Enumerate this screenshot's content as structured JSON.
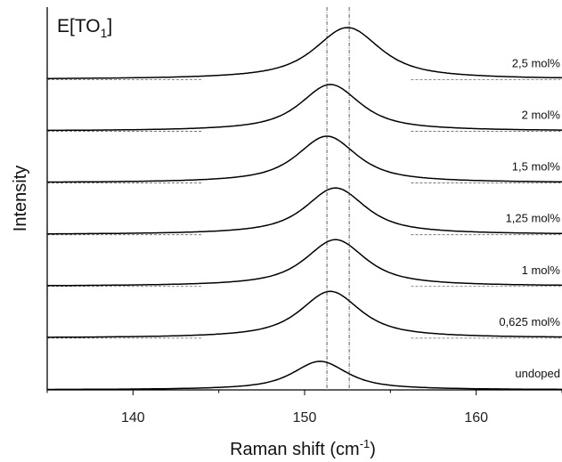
{
  "chart_data": {
    "type": "line",
    "title": "E[TO1]",
    "title_parts": {
      "main": "E[TO",
      "sub": "1",
      "close": "]"
    },
    "xlabel": "Raman shift",
    "xlabel_unit_parts": {
      "open": "(cm",
      "sup": "-1",
      "close": ")"
    },
    "ylabel": "Intensity",
    "xlim": [
      135,
      165
    ],
    "xticks": [
      140,
      150,
      160
    ],
    "ylim": [
      0,
      7.4
    ],
    "grid": false,
    "stacked_offset": 1,
    "series": [
      {
        "name": "undoped",
        "center": 150.9,
        "width": 2.0,
        "height": 0.55,
        "tail": 0.1
      },
      {
        "name": "0,625 mol%",
        "center": 151.5,
        "width": 2.2,
        "height": 0.9,
        "tail": 0.22
      },
      {
        "name": "1 mol%",
        "center": 151.8,
        "width": 2.2,
        "height": 0.9,
        "tail": 0.22
      },
      {
        "name": "1,25 mol%",
        "center": 151.8,
        "width": 2.2,
        "height": 0.9,
        "tail": 0.22
      },
      {
        "name": "1,5 mol%",
        "center": 151.3,
        "width": 2.2,
        "height": 0.9,
        "tail": 0.22
      },
      {
        "name": "2 mol%",
        "center": 151.5,
        "width": 2.2,
        "height": 0.9,
        "tail": 0.22
      },
      {
        "name": "2,5 mol%",
        "center": 152.5,
        "width": 2.4,
        "height": 1.0,
        "tail": 0.25
      }
    ],
    "reference_lines": [
      151.3,
      152.6
    ]
  }
}
